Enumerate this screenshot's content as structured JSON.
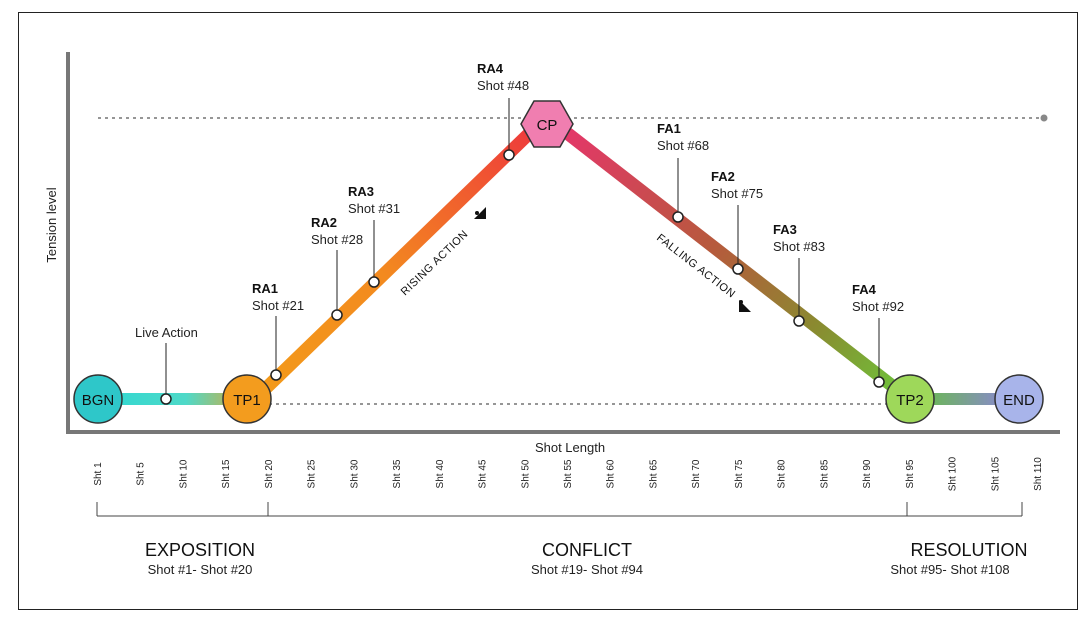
{
  "axes": {
    "y_label": "Tension level",
    "x_label": "Shot Length"
  },
  "nodes": [
    {
      "id": "bgn",
      "label": "BGN",
      "shape": "circle",
      "color": "#2ec7c9"
    },
    {
      "id": "tp1",
      "label": "TP1",
      "shape": "circle",
      "color": "#f39c1e"
    },
    {
      "id": "cp",
      "label": "CP",
      "shape": "hexagon",
      "color": "#f07eb0"
    },
    {
      "id": "tp2",
      "label": "TP2",
      "shape": "circle",
      "color": "#9ed85a"
    },
    {
      "id": "end",
      "label": "END",
      "shape": "circle",
      "color": "#a8b4ea"
    }
  ],
  "points": [
    {
      "id": "live-action",
      "title": "",
      "subtitle": "Live Action"
    },
    {
      "id": "ra1",
      "title": "RA1",
      "subtitle": "Shot #21"
    },
    {
      "id": "ra2",
      "title": "RA2",
      "subtitle": "Shot #28"
    },
    {
      "id": "ra3",
      "title": "RA3",
      "subtitle": "Shot #31"
    },
    {
      "id": "ra4",
      "title": "RA4",
      "subtitle": "Shot #48"
    },
    {
      "id": "fa1",
      "title": "FA1",
      "subtitle": "Shot #68"
    },
    {
      "id": "fa2",
      "title": "FA2",
      "subtitle": "Shot #75"
    },
    {
      "id": "fa3",
      "title": "FA3",
      "subtitle": "Shot #83"
    },
    {
      "id": "fa4",
      "title": "FA4",
      "subtitle": "Shot #92"
    }
  ],
  "actions": {
    "rising": "RISING ACTION",
    "falling": "FALLING ACTION"
  },
  "ticks": [
    "Sht 1",
    "Sht 5",
    "Sht 10",
    "Sht 15",
    "Sht 20",
    "Sht 25",
    "Sht 30",
    "Sht 35",
    "Sht 40",
    "Sht 45",
    "Sht 50",
    "Sht 55",
    "Sht 60",
    "Sht 65",
    "Sht 70",
    "Sht 75",
    "Sht 80",
    "Sht 85",
    "Sht 90",
    "Sht 95",
    "Sht 100",
    "Sht 105",
    "Sht 110"
  ],
  "phases": [
    {
      "id": "exposition",
      "title": "EXPOSITION",
      "range": "Shot #1- Shot #20"
    },
    {
      "id": "conflict",
      "title": "CONFLICT",
      "range": "Shot #19- Shot #94"
    },
    {
      "id": "resolution",
      "title": "RESOLUTION",
      "range": "Shot #95- Shot #108"
    }
  ]
}
